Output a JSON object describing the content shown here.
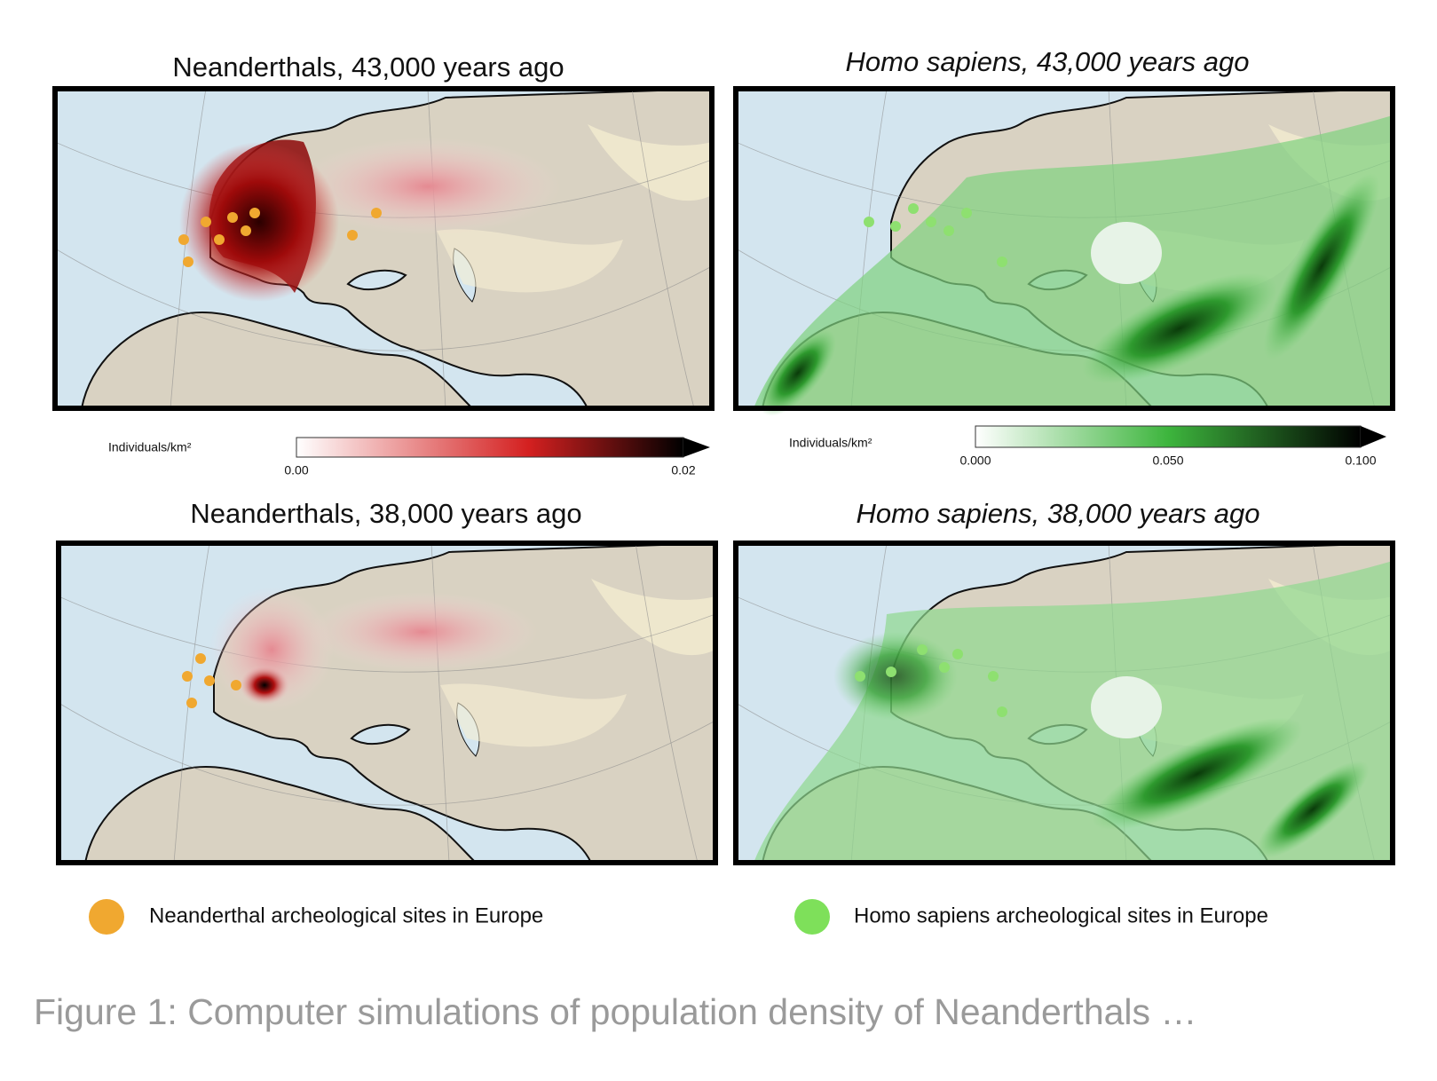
{
  "panels": [
    {
      "title": "Neanderthals, 43,000 years ago"
    },
    {
      "title": "Homo sapiens, 43,000 years ago"
    },
    {
      "title": "Neanderthals, 38,000 years ago"
    },
    {
      "title": "Homo sapiens, 38,000 years ago"
    }
  ],
  "colorbars": [
    {
      "label": "Individuals/km²",
      "ticks": [
        {
          "value": 0,
          "label": "0.00"
        },
        {
          "value": 0.02,
          "label": "0.02"
        }
      ]
    },
    {
      "label": "Individuals/km²",
      "ticks": [
        {
          "value": 0,
          "label": "0.000"
        },
        {
          "value": 0.05,
          "label": "0.050"
        },
        {
          "value": 0.1,
          "label": "0.100"
        }
      ]
    }
  ],
  "legend": [
    {
      "label": "Neanderthal archeological sites in Europe"
    },
    {
      "label": "Homo sapiens archeological sites in Europe"
    }
  ],
  "caption": "Figure 1: Computer simulations of population density of Neanderthals …"
}
